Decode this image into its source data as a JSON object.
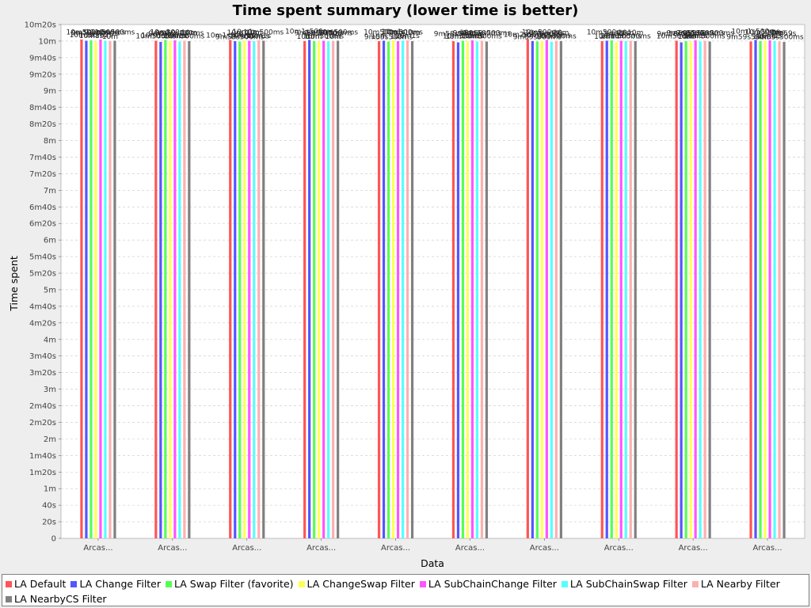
{
  "chart_data": {
    "type": "bar",
    "title": "Time spent summary (lower time is better)",
    "xlabel": "Data",
    "ylabel": "Time spent",
    "ylim_ms": [
      0,
      620000
    ],
    "yticks": [
      {
        "ms": 0,
        "label": "0"
      },
      {
        "ms": 20000,
        "label": "20s"
      },
      {
        "ms": 40000,
        "label": "40s"
      },
      {
        "ms": 60000,
        "label": "1m"
      },
      {
        "ms": 80000,
        "label": "1m20s"
      },
      {
        "ms": 100000,
        "label": "1m40s"
      },
      {
        "ms": 120000,
        "label": "2m"
      },
      {
        "ms": 140000,
        "label": "2m20s"
      },
      {
        "ms": 160000,
        "label": "2m40s"
      },
      {
        "ms": 180000,
        "label": "3m"
      },
      {
        "ms": 200000,
        "label": "3m20s"
      },
      {
        "ms": 220000,
        "label": "3m40s"
      },
      {
        "ms": 240000,
        "label": "4m"
      },
      {
        "ms": 260000,
        "label": "4m20s"
      },
      {
        "ms": 280000,
        "label": "4m40s"
      },
      {
        "ms": 300000,
        "label": "5m"
      },
      {
        "ms": 320000,
        "label": "5m20s"
      },
      {
        "ms": 340000,
        "label": "5m40s"
      },
      {
        "ms": 360000,
        "label": "6m"
      },
      {
        "ms": 380000,
        "label": "6m20s"
      },
      {
        "ms": 400000,
        "label": "6m40s"
      },
      {
        "ms": 420000,
        "label": "7m"
      },
      {
        "ms": 440000,
        "label": "7m20s"
      },
      {
        "ms": 460000,
        "label": "7m40s"
      },
      {
        "ms": 480000,
        "label": "8m"
      },
      {
        "ms": 500000,
        "label": "8m20s"
      },
      {
        "ms": 520000,
        "label": "8m40s"
      },
      {
        "ms": 540000,
        "label": "9m"
      },
      {
        "ms": 560000,
        "label": "9m20s"
      },
      {
        "ms": 580000,
        "label": "9m40s"
      },
      {
        "ms": 600000,
        "label": "10m"
      },
      {
        "ms": 620000,
        "label": "10m20s"
      }
    ],
    "categories": [
      "Arcas...",
      "Arcas...",
      "Arcas...",
      "Arcas...",
      "Arcas...",
      "Arcas...",
      "Arcas...",
      "Arcas...",
      "Arcas...",
      "Arcas..."
    ],
    "series": [
      {
        "name": "LA Default",
        "color": "#ff5555",
        "values_ms": [
          602000,
          600500,
          601500,
          600000,
          600000,
          600000,
          602500,
          600000,
          600500,
          599500
        ]
      },
      {
        "name": "LA Change Filter",
        "color": "#5555ff",
        "values_ms": [
          600500,
          599000,
          600000,
          601500,
          600500,
          598500,
          600000,
          600500,
          598500,
          601500
        ]
      },
      {
        "name": "LA Swap Filter (favorite)",
        "color": "#55ff55",
        "values_ms": [
          601000,
          601500,
          599500,
          600000,
          599500,
          600500,
          599500,
          601000,
          600000,
          600000
        ]
      },
      {
        "name": "LA ChangeSwap Filter",
        "color": "#ffff55",
        "values_ms": [
          599500,
          600500,
          601000,
          599500,
          601000,
          600000,
          600500,
          599000,
          599500,
          600500
        ]
      },
      {
        "name": "LA SubChainChange Filter",
        "color": "#ff55ff",
        "values_ms": [
          602000,
          601000,
          600500,
          600500,
          600000,
          601000,
          601500,
          600500,
          601000,
          601000
        ]
      },
      {
        "name": "LA SubChainSwap Filter",
        "color": "#55ffff",
        "values_ms": [
          600500,
          599500,
          600000,
          599500,
          600500,
          599500,
          599000,
          600000,
          599500,
          600000
        ]
      },
      {
        "name": "LA Nearby Filter",
        "color": "#ffafaf",
        "values_ms": [
          600000,
          600500,
          601000,
          600000,
          601000,
          600500,
          600500,
          600500,
          600500,
          599500
        ]
      },
      {
        "name": "LA NearbyCS Filter",
        "color": "#808080",
        "values_ms": [
          600500,
          600000,
          600500,
          600500,
          600000,
          599500,
          600000,
          600000,
          599500,
          599000
        ]
      }
    ]
  }
}
